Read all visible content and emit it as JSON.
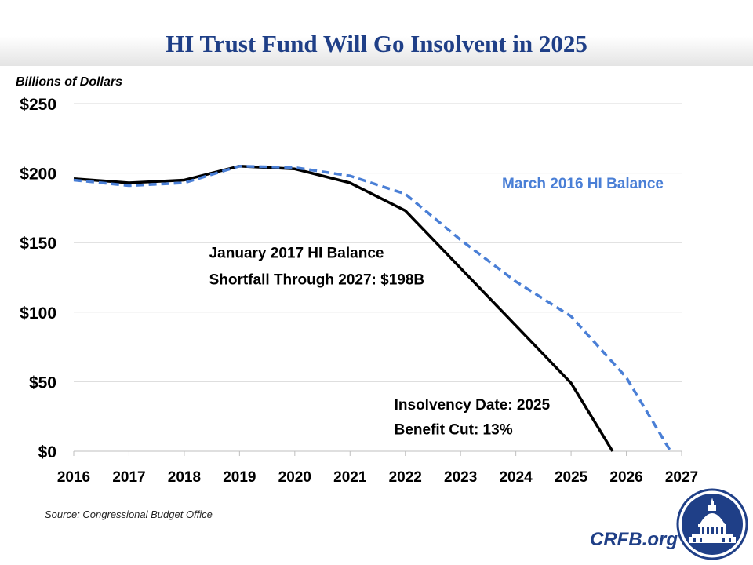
{
  "title": "HI Trust Fund Will Go Insolvent in 2025",
  "source": "Source: Congressional Budget Office",
  "brand": "CRFB.org",
  "colors": {
    "title": "#1f3f87",
    "baseline_line": "#000000",
    "march_line": "#4a7fd6",
    "grid": "#d9d9d9"
  },
  "chart_data": {
    "type": "line",
    "title": "HI Trust Fund Will Go Insolvent in 2025",
    "ylabel": "Billions of Dollars",
    "xlabel": "",
    "x": [
      2016,
      2017,
      2018,
      2019,
      2020,
      2021,
      2022,
      2023,
      2024,
      2025,
      2026,
      2027
    ],
    "xticks": [
      "2016",
      "2017",
      "2018",
      "2019",
      "2020",
      "2021",
      "2022",
      "2023",
      "2024",
      "2025",
      "2026",
      "2027"
    ],
    "ylim": [
      0,
      250
    ],
    "yticks": [
      0,
      50,
      100,
      150,
      200,
      250
    ],
    "ytick_labels": [
      "$0",
      "$50",
      "$100",
      "$150",
      "$200",
      "$250"
    ],
    "grid": true,
    "series": [
      {
        "name": "January 2017 HI Balance",
        "style": "solid",
        "x": [
          2016,
          2017,
          2018,
          2019,
          2020,
          2021,
          2022,
          2025,
          2025.75
        ],
        "values": [
          196,
          193,
          195,
          205,
          203,
          193,
          173,
          49,
          0
        ]
      },
      {
        "name": "March 2016 HI Balance",
        "style": "dashed",
        "x": [
          2016,
          2017,
          2018,
          2019,
          2020,
          2021,
          2022,
          2023,
          2024,
          2025,
          2026,
          2026.8
        ],
        "values": [
          195,
          191,
          193,
          205,
          204,
          198,
          185,
          152,
          122,
          97,
          53,
          0
        ]
      }
    ],
    "annotations": [
      {
        "text": "March 2016 HI Balance",
        "x": 2023.75,
        "y": 189,
        "color": "#4a7fd6"
      },
      {
        "text": "January 2017 HI Balance",
        "x": 2018.45,
        "y": 139,
        "color": "#000000"
      },
      {
        "text": "Shortfall Through 2027: $198B",
        "x": 2018.45,
        "y": 120,
        "color": "#000000"
      },
      {
        "text": "Insolvency Date: 2025",
        "x": 2021.8,
        "y": 30,
        "color": "#000000"
      },
      {
        "text": "Benefit Cut: 13%",
        "x": 2021.8,
        "y": 12,
        "color": "#000000"
      }
    ]
  }
}
